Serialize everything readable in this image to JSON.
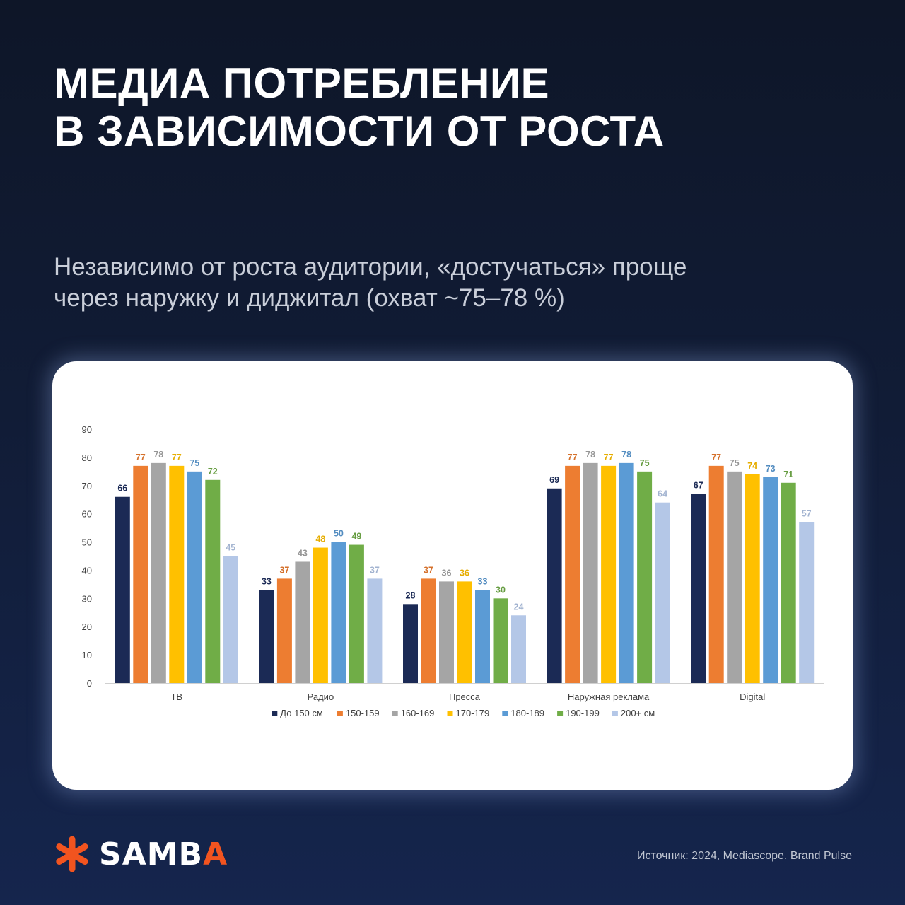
{
  "header": {
    "title_line1": "МЕДИА ПОТРЕБЛЕНИЕ",
    "title_line2": "В ЗАВИСИМОСТИ ОТ РОСТА",
    "subtitle_line1": "Независимо от роста аудитории, «достучаться» проще",
    "subtitle_line2": "через наружку и диджитал (охват ~75–78 %)"
  },
  "footer": {
    "brand_main": "SAMB",
    "brand_accent": "A",
    "source": "Источник: 2024, Mediascope, Brand Pulse"
  },
  "colors": {
    "accent": "#f2541f",
    "background": "#111c36"
  },
  "chart_data": {
    "type": "bar",
    "title": "",
    "xlabel": "",
    "ylabel": "",
    "ylim": [
      0,
      90
    ],
    "yticks": [
      0,
      10,
      20,
      30,
      40,
      50,
      60,
      70,
      80,
      90
    ],
    "grid": false,
    "legend_position": "bottom",
    "categories": [
      "ТВ",
      "Радио",
      "Пресса",
      "Наружная реклама",
      "Digital"
    ],
    "series": [
      {
        "name": "До 150 см",
        "color": "#1b2a55",
        "values": [
          66,
          33,
          28,
          69,
          67
        ]
      },
      {
        "name": "150-159",
        "color": "#ed7d31",
        "values": [
          77,
          37,
          37,
          77,
          77
        ]
      },
      {
        "name": "160-169",
        "color": "#a5a5a5",
        "values": [
          78,
          43,
          36,
          78,
          75
        ]
      },
      {
        "name": "170-179",
        "color": "#ffc000",
        "values": [
          77,
          48,
          36,
          77,
          74
        ]
      },
      {
        "name": "180-189",
        "color": "#5b9bd5",
        "values": [
          75,
          50,
          33,
          78,
          73
        ]
      },
      {
        "name": "190-199",
        "color": "#70ad47",
        "values": [
          72,
          49,
          30,
          75,
          71
        ]
      },
      {
        "name": "200+ см",
        "color": "#b4c7e7",
        "values": [
          45,
          37,
          24,
          64,
          57
        ]
      }
    ]
  }
}
